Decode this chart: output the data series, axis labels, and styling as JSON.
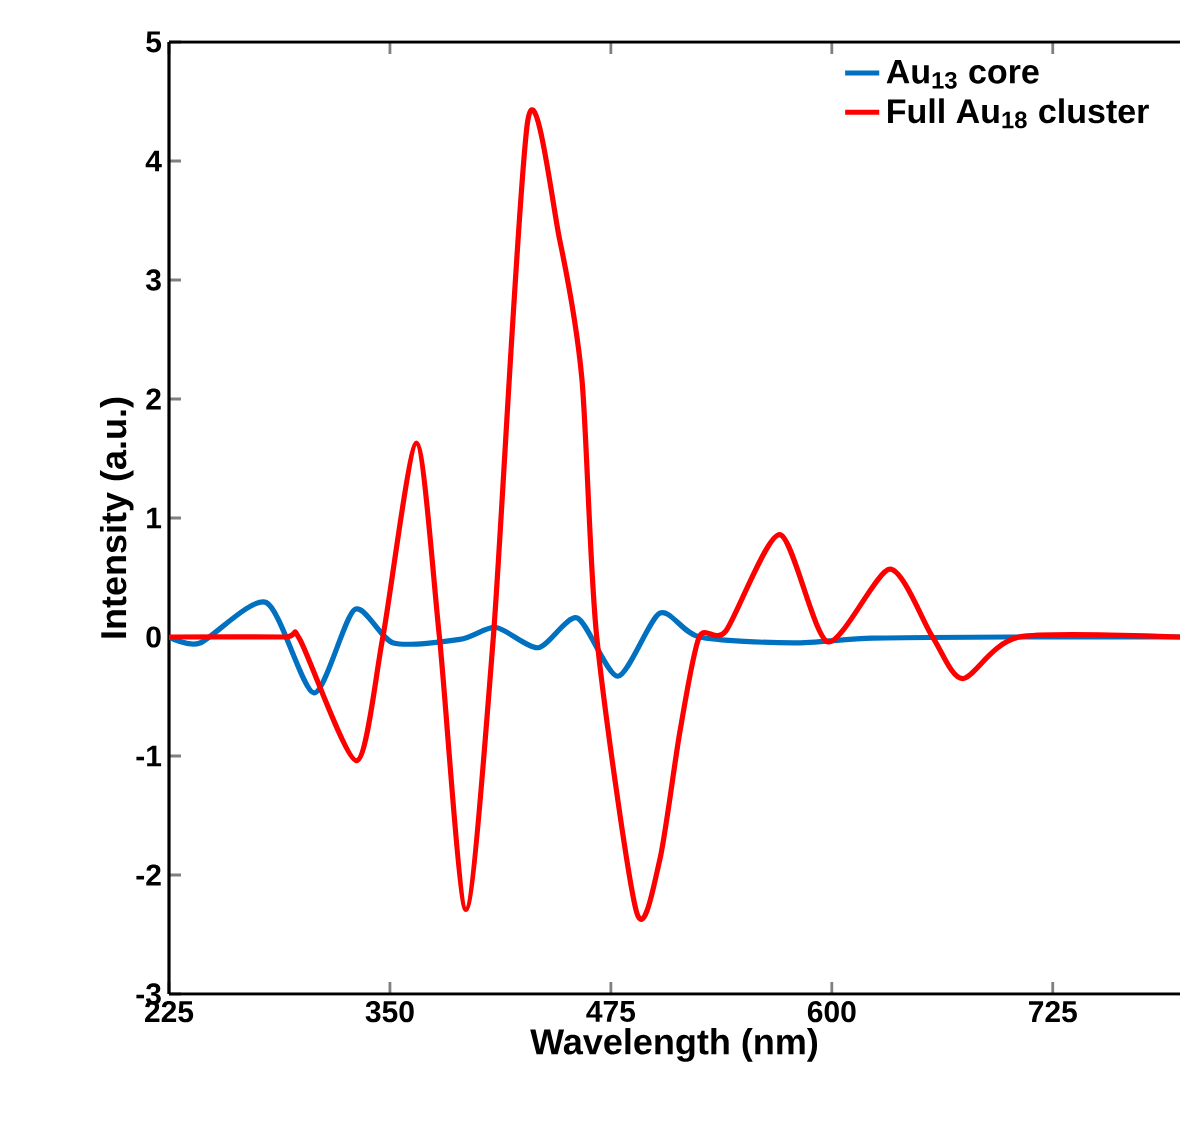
{
  "chart_data": {
    "type": "line",
    "xlabel": "Wavelength (nm)",
    "ylabel": "Intensity (a.u.)",
    "xlim": [
      225,
      797
    ],
    "xticks": [
      225,
      350,
      475,
      600,
      725
    ],
    "ylim": [
      -3,
      5
    ],
    "yticks": [
      -3,
      -2,
      -1,
      0,
      1,
      2,
      3,
      4,
      5
    ],
    "legend": "top right",
    "series": [
      {
        "name": "Au$_{13}$ core",
        "color": "#0070c0",
        "x": [
          225,
          242.5,
          280,
          307,
          330,
          352,
          389.6,
          410,
          434,
          456,
          479,
          502.7,
          525,
          578,
          623,
          700,
          797
        ],
        "values": [
          0,
          -0.05,
          0.29,
          -0.47,
          0.23,
          -0.05,
          -0.02,
          0.08,
          -0.09,
          0.16,
          -0.33,
          0.2,
          0,
          -0.05,
          -0.01,
          0,
          0
        ]
      },
      {
        "name": "Full Au$_{18}$ cluster",
        "color": "#ff0000",
        "x": [
          225,
          290,
          299,
          331,
          346,
          365,
          378,
          393,
          408.5,
          428,
          446,
          458.6,
          467,
          489.5,
          502.7,
          514,
          525,
          540,
          570.6,
          597.7,
          632.8,
          657,
          674,
          706,
          797
        ],
        "values": [
          0,
          0,
          -0.02,
          -1.04,
          0,
          1.63,
          0,
          -2.29,
          0,
          4.34,
          3.34,
          2.17,
          0,
          -2.31,
          -1.87,
          -0.8,
          0,
          0.05,
          0.86,
          -0.04,
          0.57,
          0,
          -0.35,
          0,
          0
        ]
      }
    ]
  }
}
